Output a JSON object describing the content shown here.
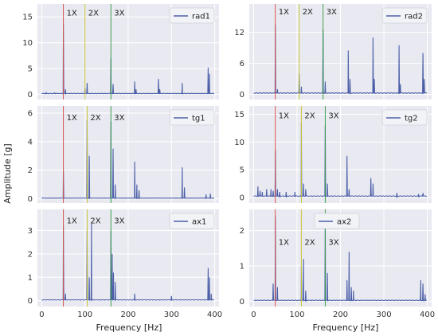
{
  "figure": {
    "ylabel": "Amplitude [g]",
    "xlabel_left": "Frequency [Hz]",
    "xlabel_right": "Frequency [Hz]"
  },
  "colors": {
    "background": "#e9eaf1",
    "grid": "#ffffff",
    "trace": "#4c5fa8",
    "line_1x": "#d9534f",
    "line_2x": "#c9c534",
    "line_3x": "#3a9d4a"
  },
  "harmonic_labels": [
    "1X",
    "2X",
    "3X"
  ],
  "legend": {
    "placement": "top-right"
  },
  "chart_data": [
    {
      "type": "line",
      "name": "rad1",
      "xlim": [
        -10,
        410
      ],
      "ylim": [
        -1,
        17.5
      ],
      "xticks": [
        0,
        100,
        200,
        300,
        400
      ],
      "yticks": [
        0,
        5,
        10,
        15
      ],
      "harmonics": [
        50,
        100,
        160
      ],
      "label_y": 15.3,
      "peaks": [
        [
          10,
          0.3
        ],
        [
          30,
          0.3
        ],
        [
          50,
          13.5
        ],
        [
          55,
          1.0
        ],
        [
          100,
          1.2
        ],
        [
          105,
          2.2
        ],
        [
          160,
          7.0
        ],
        [
          165,
          2.0
        ],
        [
          215,
          2.5
        ],
        [
          218,
          1.0
        ],
        [
          270,
          3.0
        ],
        [
          273,
          1.0
        ],
        [
          325,
          2.2
        ],
        [
          385,
          5.2
        ],
        [
          388,
          4.0
        ]
      ],
      "baseline": 0.2
    },
    {
      "type": "line",
      "name": "rad2",
      "xlim": [
        -10,
        410
      ],
      "ylim": [
        -1,
        17.5
      ],
      "xticks": [
        0,
        100,
        200,
        300,
        400
      ],
      "yticks": [
        0,
        6,
        12
      ],
      "harmonics": [
        50,
        105,
        160
      ],
      "label_y": 15.5,
      "peaks": [
        [
          50,
          13.5
        ],
        [
          55,
          1.0
        ],
        [
          105,
          4.0
        ],
        [
          110,
          1.5
        ],
        [
          160,
          12.5
        ],
        [
          165,
          2.5
        ],
        [
          218,
          8.5
        ],
        [
          222,
          3.0
        ],
        [
          275,
          11.0
        ],
        [
          278,
          3.0
        ],
        [
          335,
          9.5
        ],
        [
          338,
          2.0
        ],
        [
          390,
          8.0
        ],
        [
          393,
          3.0
        ]
      ],
      "baseline": 0.3
    },
    {
      "type": "line",
      "name": "tg1",
      "xlim": [
        -10,
        410
      ],
      "ylim": [
        -0.3,
        6.5
      ],
      "xticks": [
        0,
        100,
        200,
        300,
        400
      ],
      "yticks": [
        0,
        2,
        4,
        6
      ],
      "harmonics": [
        50,
        105,
        160
      ],
      "label_y": 5.5,
      "peaks": [
        [
          50,
          2.0
        ],
        [
          105,
          5.5
        ],
        [
          110,
          3.0
        ],
        [
          160,
          5.4
        ],
        [
          165,
          3.5
        ],
        [
          170,
          1.0
        ],
        [
          215,
          2.6
        ],
        [
          220,
          1.0
        ],
        [
          225,
          0.6
        ],
        [
          325,
          2.2
        ],
        [
          330,
          0.8
        ],
        [
          380,
          0.3
        ],
        [
          390,
          0.35
        ]
      ],
      "baseline": 0.05
    },
    {
      "type": "line",
      "name": "tg2",
      "xlim": [
        -10,
        410
      ],
      "ylim": [
        -1,
        16.5
      ],
      "xticks": [
        0,
        100,
        200,
        300,
        400
      ],
      "yticks": [
        0,
        5,
        10,
        15
      ],
      "harmonics": [
        50,
        110,
        165
      ],
      "label_y": 14.3,
      "peaks": [
        [
          10,
          2.0
        ],
        [
          15,
          1.2
        ],
        [
          20,
          1.0
        ],
        [
          30,
          1.5
        ],
        [
          40,
          1.5
        ],
        [
          45,
          1.2
        ],
        [
          50,
          8.5
        ],
        [
          55,
          1.5
        ],
        [
          60,
          1.0
        ],
        [
          75,
          1.0
        ],
        [
          95,
          1.0
        ],
        [
          110,
          13.5
        ],
        [
          115,
          2.5
        ],
        [
          120,
          1.5
        ],
        [
          165,
          13.0
        ],
        [
          170,
          2.5
        ],
        [
          215,
          7.5
        ],
        [
          220,
          1.5
        ],
        [
          270,
          3.5
        ],
        [
          275,
          2.5
        ],
        [
          330,
          0.8
        ],
        [
          380,
          0.6
        ],
        [
          390,
          0.8
        ]
      ],
      "baseline": 0.3
    },
    {
      "type": "line",
      "name": "ax1",
      "xlim": [
        -10,
        410
      ],
      "ylim": [
        -0.25,
        3.9
      ],
      "xticks": [
        0,
        100,
        200,
        300,
        400
      ],
      "yticks": [
        0,
        1,
        2,
        3
      ],
      "harmonics": [
        50,
        105,
        160
      ],
      "label_y": 3.3,
      "peaks": [
        [
          50,
          3.2
        ],
        [
          55,
          0.3
        ],
        [
          105,
          3.0
        ],
        [
          110,
          1.0
        ],
        [
          115,
          3.3
        ],
        [
          160,
          3.0
        ],
        [
          163,
          2.0
        ],
        [
          166,
          1.2
        ],
        [
          170,
          0.8
        ],
        [
          215,
          0.3
        ],
        [
          300,
          0.2
        ],
        [
          385,
          1.4
        ],
        [
          388,
          1.0
        ],
        [
          392,
          0.3
        ]
      ],
      "baseline": 0.04
    },
    {
      "type": "line",
      "name": "ax2",
      "xlim": [
        -10,
        410
      ],
      "ylim": [
        -0.15,
        2.6
      ],
      "xticks": [
        0,
        100,
        200,
        300,
        400
      ],
      "yticks": [
        0,
        1,
        2
      ],
      "harmonics": [
        50,
        110,
        165
      ],
      "label_y": 1.6,
      "peaks": [
        [
          45,
          0.5
        ],
        [
          50,
          2.4
        ],
        [
          55,
          0.4
        ],
        [
          110,
          1.0
        ],
        [
          115,
          1.2
        ],
        [
          120,
          0.3
        ],
        [
          165,
          2.2
        ],
        [
          170,
          0.8
        ],
        [
          215,
          0.6
        ],
        [
          220,
          1.4
        ],
        [
          225,
          0.4
        ],
        [
          230,
          0.3
        ],
        [
          385,
          0.6
        ],
        [
          390,
          0.5
        ],
        [
          395,
          0.2
        ]
      ],
      "baseline": 0.03
    }
  ]
}
